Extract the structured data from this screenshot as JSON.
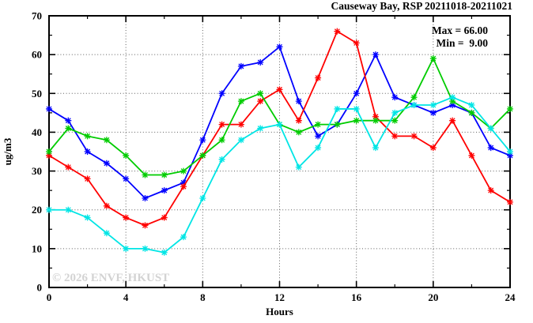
{
  "window": {
    "title": "Causeway Bay, RSP 20211018-20211021"
  },
  "header": {
    "title": "Causeway Bay, RSP 20211018-20211021"
  },
  "legend": {
    "max_label": "Max = 66.00",
    "min_label": "Min =  9.00"
  },
  "watermark": "© 2026 ENVF, HKUST",
  "axes": {
    "xlabel": "Hours",
    "ylabel": "ug/m3"
  },
  "colors": {
    "blue": "#0000ff",
    "red": "#ff0000",
    "green": "#00cc00",
    "cyan": "#00e5e5",
    "grid": "#606060",
    "border": "#000000",
    "watermark": "#d3d3d3"
  },
  "chart_data": {
    "type": "line",
    "title": "Causeway Bay, RSP 20211018-20211021",
    "xlabel": "Hours",
    "ylabel": "ug/m3",
    "xlim": [
      0,
      24
    ],
    "ylim": [
      0,
      70
    ],
    "grid": true,
    "legend_position": "top-right-inside",
    "max_value": 66.0,
    "min_value": 9.0,
    "x_major_ticks": [
      0,
      4,
      8,
      12,
      16,
      20,
      24
    ],
    "x_minor_step": 2,
    "y_major_ticks": [
      0,
      10,
      20,
      30,
      40,
      50,
      60,
      70
    ],
    "y_minor_step": 5,
    "x": [
      0,
      1,
      2,
      3,
      4,
      5,
      6,
      7,
      8,
      9,
      10,
      11,
      12,
      13,
      14,
      15,
      16,
      17,
      18,
      19,
      20,
      21,
      22,
      23,
      24
    ],
    "series": [
      {
        "name": "series-blue",
        "color": "#0000ff",
        "values": [
          46,
          43,
          35,
          32,
          28,
          23,
          25,
          27,
          38,
          50,
          57,
          58,
          62,
          48,
          39,
          42,
          50,
          60,
          49,
          47,
          45,
          47,
          45,
          36,
          34
        ]
      },
      {
        "name": "series-red",
        "color": "#ff0000",
        "values": [
          34,
          31,
          28,
          21,
          18,
          16,
          18,
          26,
          34,
          42,
          42,
          48,
          51,
          43,
          54,
          66,
          63,
          44,
          39,
          39,
          36,
          43,
          34,
          25,
          22
        ]
      },
      {
        "name": "series-green",
        "color": "#00cc00",
        "values": [
          35,
          41,
          39,
          38,
          34,
          29,
          29,
          30,
          34,
          38,
          48,
          50,
          42,
          40,
          42,
          42,
          43,
          43,
          43,
          49,
          59,
          48,
          45,
          41,
          46
        ]
      },
      {
        "name": "series-cyan",
        "color": "#00e5e5",
        "values": [
          20,
          20,
          18,
          14,
          10,
          10,
          9,
          13,
          23,
          33,
          38,
          41,
          42,
          31,
          36,
          46,
          46,
          36,
          45,
          47,
          47,
          49,
          47,
          41,
          35
        ]
      }
    ]
  }
}
